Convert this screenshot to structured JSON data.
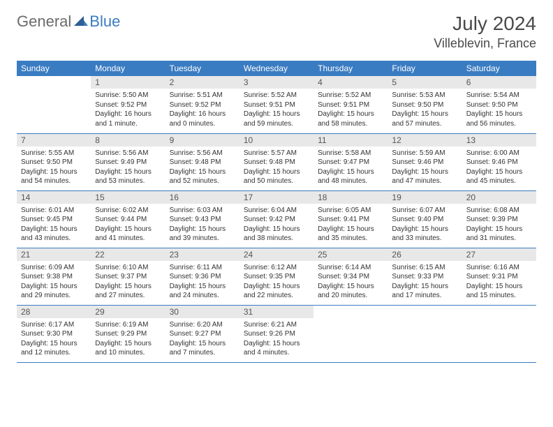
{
  "brand": {
    "part1": "General",
    "part2": "Blue"
  },
  "title": "July 2024",
  "location": "Villeblevin, France",
  "colors": {
    "header_bg": "#3a7cc2",
    "header_fg": "#ffffff",
    "daynum_bg": "#e8e8e8",
    "border": "#3a7cc2",
    "text": "#333333",
    "brand_gray": "#6b6b6b",
    "brand_blue": "#3a7cc2",
    "background": "#ffffff"
  },
  "typography": {
    "title_fontsize": 28,
    "location_fontsize": 18,
    "dayheader_fontsize": 12,
    "daynum_fontsize": 12,
    "body_fontsize": 10
  },
  "day_headers": [
    "Sunday",
    "Monday",
    "Tuesday",
    "Wednesday",
    "Thursday",
    "Friday",
    "Saturday"
  ],
  "weeks": [
    [
      {
        "num": "",
        "sunrise": "",
        "sunset": "",
        "daylight": ""
      },
      {
        "num": "1",
        "sunrise": "Sunrise: 5:50 AM",
        "sunset": "Sunset: 9:52 PM",
        "daylight": "Daylight: 16 hours and 1 minute."
      },
      {
        "num": "2",
        "sunrise": "Sunrise: 5:51 AM",
        "sunset": "Sunset: 9:52 PM",
        "daylight": "Daylight: 16 hours and 0 minutes."
      },
      {
        "num": "3",
        "sunrise": "Sunrise: 5:52 AM",
        "sunset": "Sunset: 9:51 PM",
        "daylight": "Daylight: 15 hours and 59 minutes."
      },
      {
        "num": "4",
        "sunrise": "Sunrise: 5:52 AM",
        "sunset": "Sunset: 9:51 PM",
        "daylight": "Daylight: 15 hours and 58 minutes."
      },
      {
        "num": "5",
        "sunrise": "Sunrise: 5:53 AM",
        "sunset": "Sunset: 9:50 PM",
        "daylight": "Daylight: 15 hours and 57 minutes."
      },
      {
        "num": "6",
        "sunrise": "Sunrise: 5:54 AM",
        "sunset": "Sunset: 9:50 PM",
        "daylight": "Daylight: 15 hours and 56 minutes."
      }
    ],
    [
      {
        "num": "7",
        "sunrise": "Sunrise: 5:55 AM",
        "sunset": "Sunset: 9:50 PM",
        "daylight": "Daylight: 15 hours and 54 minutes."
      },
      {
        "num": "8",
        "sunrise": "Sunrise: 5:56 AM",
        "sunset": "Sunset: 9:49 PM",
        "daylight": "Daylight: 15 hours and 53 minutes."
      },
      {
        "num": "9",
        "sunrise": "Sunrise: 5:56 AM",
        "sunset": "Sunset: 9:48 PM",
        "daylight": "Daylight: 15 hours and 52 minutes."
      },
      {
        "num": "10",
        "sunrise": "Sunrise: 5:57 AM",
        "sunset": "Sunset: 9:48 PM",
        "daylight": "Daylight: 15 hours and 50 minutes."
      },
      {
        "num": "11",
        "sunrise": "Sunrise: 5:58 AM",
        "sunset": "Sunset: 9:47 PM",
        "daylight": "Daylight: 15 hours and 48 minutes."
      },
      {
        "num": "12",
        "sunrise": "Sunrise: 5:59 AM",
        "sunset": "Sunset: 9:46 PM",
        "daylight": "Daylight: 15 hours and 47 minutes."
      },
      {
        "num": "13",
        "sunrise": "Sunrise: 6:00 AM",
        "sunset": "Sunset: 9:46 PM",
        "daylight": "Daylight: 15 hours and 45 minutes."
      }
    ],
    [
      {
        "num": "14",
        "sunrise": "Sunrise: 6:01 AM",
        "sunset": "Sunset: 9:45 PM",
        "daylight": "Daylight: 15 hours and 43 minutes."
      },
      {
        "num": "15",
        "sunrise": "Sunrise: 6:02 AM",
        "sunset": "Sunset: 9:44 PM",
        "daylight": "Daylight: 15 hours and 41 minutes."
      },
      {
        "num": "16",
        "sunrise": "Sunrise: 6:03 AM",
        "sunset": "Sunset: 9:43 PM",
        "daylight": "Daylight: 15 hours and 39 minutes."
      },
      {
        "num": "17",
        "sunrise": "Sunrise: 6:04 AM",
        "sunset": "Sunset: 9:42 PM",
        "daylight": "Daylight: 15 hours and 38 minutes."
      },
      {
        "num": "18",
        "sunrise": "Sunrise: 6:05 AM",
        "sunset": "Sunset: 9:41 PM",
        "daylight": "Daylight: 15 hours and 35 minutes."
      },
      {
        "num": "19",
        "sunrise": "Sunrise: 6:07 AM",
        "sunset": "Sunset: 9:40 PM",
        "daylight": "Daylight: 15 hours and 33 minutes."
      },
      {
        "num": "20",
        "sunrise": "Sunrise: 6:08 AM",
        "sunset": "Sunset: 9:39 PM",
        "daylight": "Daylight: 15 hours and 31 minutes."
      }
    ],
    [
      {
        "num": "21",
        "sunrise": "Sunrise: 6:09 AM",
        "sunset": "Sunset: 9:38 PM",
        "daylight": "Daylight: 15 hours and 29 minutes."
      },
      {
        "num": "22",
        "sunrise": "Sunrise: 6:10 AM",
        "sunset": "Sunset: 9:37 PM",
        "daylight": "Daylight: 15 hours and 27 minutes."
      },
      {
        "num": "23",
        "sunrise": "Sunrise: 6:11 AM",
        "sunset": "Sunset: 9:36 PM",
        "daylight": "Daylight: 15 hours and 24 minutes."
      },
      {
        "num": "24",
        "sunrise": "Sunrise: 6:12 AM",
        "sunset": "Sunset: 9:35 PM",
        "daylight": "Daylight: 15 hours and 22 minutes."
      },
      {
        "num": "25",
        "sunrise": "Sunrise: 6:14 AM",
        "sunset": "Sunset: 9:34 PM",
        "daylight": "Daylight: 15 hours and 20 minutes."
      },
      {
        "num": "26",
        "sunrise": "Sunrise: 6:15 AM",
        "sunset": "Sunset: 9:33 PM",
        "daylight": "Daylight: 15 hours and 17 minutes."
      },
      {
        "num": "27",
        "sunrise": "Sunrise: 6:16 AM",
        "sunset": "Sunset: 9:31 PM",
        "daylight": "Daylight: 15 hours and 15 minutes."
      }
    ],
    [
      {
        "num": "28",
        "sunrise": "Sunrise: 6:17 AM",
        "sunset": "Sunset: 9:30 PM",
        "daylight": "Daylight: 15 hours and 12 minutes."
      },
      {
        "num": "29",
        "sunrise": "Sunrise: 6:19 AM",
        "sunset": "Sunset: 9:29 PM",
        "daylight": "Daylight: 15 hours and 10 minutes."
      },
      {
        "num": "30",
        "sunrise": "Sunrise: 6:20 AM",
        "sunset": "Sunset: 9:27 PM",
        "daylight": "Daylight: 15 hours and 7 minutes."
      },
      {
        "num": "31",
        "sunrise": "Sunrise: 6:21 AM",
        "sunset": "Sunset: 9:26 PM",
        "daylight": "Daylight: 15 hours and 4 minutes."
      },
      {
        "num": "",
        "sunrise": "",
        "sunset": "",
        "daylight": ""
      },
      {
        "num": "",
        "sunrise": "",
        "sunset": "",
        "daylight": ""
      },
      {
        "num": "",
        "sunrise": "",
        "sunset": "",
        "daylight": ""
      }
    ]
  ]
}
